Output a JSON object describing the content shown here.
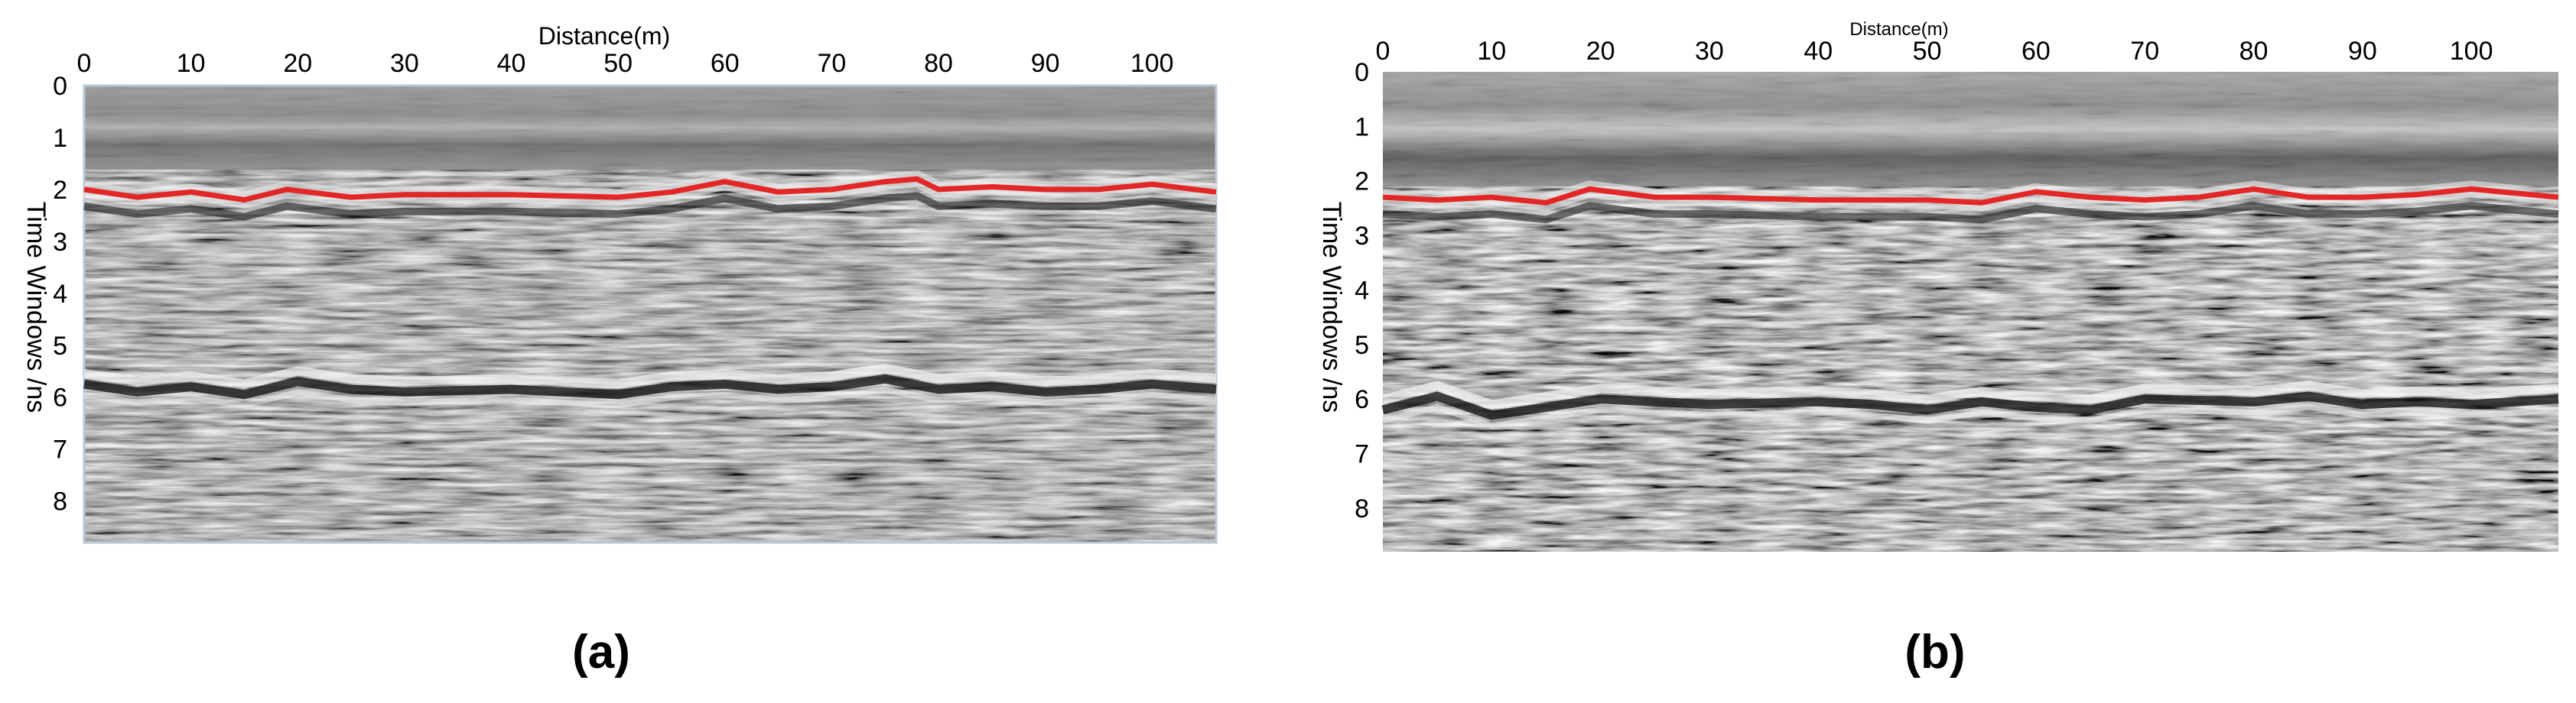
{
  "chart_data": [
    {
      "panel_label": "(a)",
      "type": "heatmap",
      "title": "Distance(m)",
      "xlabel": "",
      "ylabel": "Time Windows /ns",
      "x_ticks": [
        0,
        10,
        20,
        30,
        40,
        50,
        60,
        70,
        80,
        90,
        100
      ],
      "y_ticks": [
        0,
        1,
        2,
        3,
        4,
        5,
        6,
        7,
        8
      ],
      "xlim": [
        0,
        106
      ],
      "ylim": [
        0,
        8.8
      ],
      "x_axis_position": "top",
      "colormap": "grayscale",
      "reflectors": [
        {
          "name": "",
          "color": "#e32626",
          "x": [
            0,
            5,
            10,
            15,
            19,
            25,
            30,
            40,
            50,
            55,
            60,
            65,
            70,
            75,
            78,
            80,
            85,
            90,
            95,
            100,
            106
          ],
          "y": [
            2.0,
            2.15,
            2.05,
            2.2,
            2.0,
            2.15,
            2.1,
            2.1,
            2.15,
            2.05,
            1.85,
            2.05,
            2.0,
            1.85,
            1.8,
            2.0,
            1.95,
            2.0,
            2.0,
            1.9,
            2.05
          ]
        },
        {
          "name": "",
          "color": "#151515",
          "x": [
            0,
            5,
            10,
            15,
            20,
            25,
            30,
            40,
            50,
            55,
            60,
            65,
            70,
            75,
            80,
            85,
            90,
            95,
            100,
            106
          ],
          "y": [
            5.75,
            5.9,
            5.8,
            5.95,
            5.7,
            5.85,
            5.9,
            5.85,
            5.95,
            5.8,
            5.75,
            5.85,
            5.8,
            5.65,
            5.85,
            5.8,
            5.9,
            5.85,
            5.75,
            5.85
          ]
        }
      ]
    },
    {
      "panel_label": "(b)",
      "type": "heatmap",
      "title": "Distance(m)",
      "xlabel": "",
      "ylabel": "Time Windows /ns",
      "x_ticks": [
        0,
        10,
        20,
        30,
        40,
        50,
        60,
        70,
        80,
        90,
        100
      ],
      "y_ticks": [
        0,
        1,
        2,
        3,
        4,
        5,
        6,
        7,
        8
      ],
      "xlim": [
        0,
        108
      ],
      "ylim": [
        0,
        8.8
      ],
      "x_axis_position": "top",
      "colormap": "grayscale",
      "reflectors": [
        {
          "name": "",
          "color": "#e32626",
          "x": [
            0,
            5,
            10,
            15,
            19,
            25,
            30,
            40,
            50,
            55,
            60,
            65,
            70,
            75,
            80,
            85,
            90,
            95,
            100,
            108
          ],
          "y": [
            2.3,
            2.35,
            2.3,
            2.4,
            2.15,
            2.3,
            2.3,
            2.35,
            2.35,
            2.4,
            2.2,
            2.3,
            2.35,
            2.3,
            2.15,
            2.3,
            2.3,
            2.25,
            2.15,
            2.3
          ]
        },
        {
          "name": "",
          "color": "#151515",
          "x": [
            0,
            5,
            10,
            15,
            20,
            30,
            40,
            45,
            50,
            55,
            60,
            65,
            70,
            80,
            85,
            90,
            95,
            100,
            108
          ],
          "y": [
            6.2,
            5.95,
            6.3,
            6.15,
            6.0,
            6.1,
            6.05,
            6.1,
            6.2,
            6.05,
            6.15,
            6.2,
            6.0,
            6.05,
            5.95,
            6.1,
            6.05,
            6.1,
            6.0
          ]
        }
      ]
    }
  ]
}
